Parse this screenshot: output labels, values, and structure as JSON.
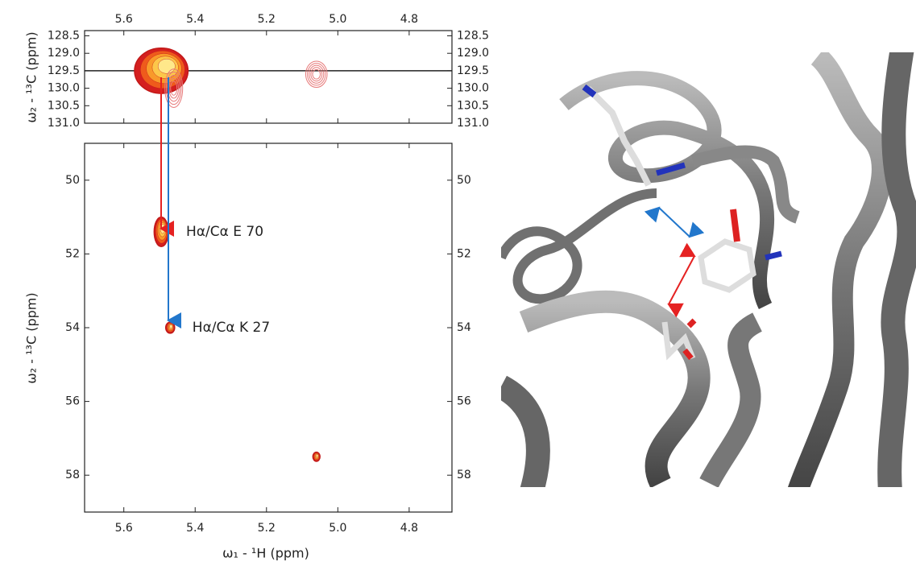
{
  "chart_data": [
    {
      "type": "contour",
      "ylabel": "ω₂ - ¹³C (ppm)",
      "xlim": [
        5.71,
        4.68
      ],
      "xticks": [
        5.6,
        5.4,
        5.2,
        {
          "value": 5.0,
          "label": "5.0"
        },
        4.8
      ],
      "ylim": [
        131.0,
        128.35
      ],
      "yticks": [
        128.5,
        {
          "value": 129,
          "label": "129.0"
        },
        129.5,
        {
          "value": 130,
          "label": "130.0"
        },
        130.5,
        {
          "value": 131,
          "label": "131.0"
        }
      ],
      "hline": 129.5,
      "peaks": [
        {
          "x": 5.495,
          "y": 129.5,
          "width": 0.15,
          "height": 1.3,
          "style": "filled"
        },
        {
          "x": 5.06,
          "y": 129.6,
          "width": 0.06,
          "height": 0.75,
          "style": "outline"
        },
        {
          "x": 5.46,
          "y": 130.0,
          "width": 0.05,
          "height": 1.1,
          "style": "outline"
        }
      ]
    },
    {
      "type": "contour",
      "xlabel": "ω₁ - ¹H  (ppm)",
      "ylabel": "ω₂ - ¹³C  (ppm)",
      "xlim": [
        5.71,
        4.68
      ],
      "xticks": [
        5.6,
        5.4,
        5.2,
        {
          "value": 5.0,
          "label": "5.0"
        },
        4.8
      ],
      "ylim": [
        59.0,
        49.0
      ],
      "yticks": [
        50,
        52,
        54,
        56,
        58
      ],
      "peaks": [
        {
          "x": 5.495,
          "y": 51.4,
          "width": 0.04,
          "height": 0.8,
          "style": "filled",
          "label": "Hα/Cα E 70"
        },
        {
          "x": 5.47,
          "y": 54.0,
          "width": 0.025,
          "height": 0.3,
          "style": "filled",
          "label": "Hα/Cα  K 27"
        },
        {
          "x": 5.06,
          "y": 57.5,
          "width": 0.02,
          "height": 0.25,
          "style": "filled"
        }
      ]
    }
  ]
}
